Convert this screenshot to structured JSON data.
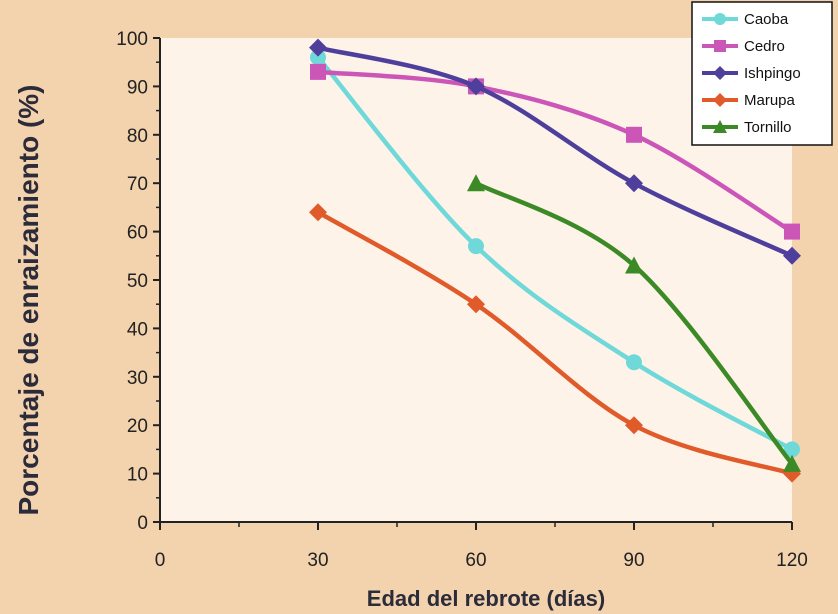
{
  "colors": {
    "background": "#f3d2ae",
    "plot_area": "#fdf3e9",
    "axis": "#222222",
    "legend_bg": "#ffffff"
  },
  "chart_data": {
    "type": "line",
    "title": "",
    "xlabel": "Edad del rebrote (días)",
    "ylabel": "Porcentaje de enraizamiento (%)",
    "xlim": [
      0,
      120
    ],
    "ylim": [
      0,
      100
    ],
    "x_ticks": [
      "0",
      "30",
      "60",
      "90",
      "120"
    ],
    "y_ticks": [
      "0",
      "10",
      "20",
      "30",
      "40",
      "50",
      "60",
      "70",
      "80",
      "90",
      "100"
    ],
    "grid": false,
    "legend_position": "top-right",
    "series": [
      {
        "name": "Caoba",
        "color": "#6fd8d8",
        "marker": "circle",
        "x": [
          30,
          60,
          90,
          120
        ],
        "y": [
          96,
          57,
          33,
          15
        ]
      },
      {
        "name": "Cedro",
        "color": "#cc55b8",
        "marker": "square",
        "x": [
          30,
          60,
          90,
          120
        ],
        "y": [
          93,
          90,
          80,
          60
        ]
      },
      {
        "name": "Ishpingo",
        "color": "#4e3f9c",
        "marker": "diamond",
        "x": [
          30,
          60,
          90,
          120
        ],
        "y": [
          98,
          90,
          70,
          55
        ]
      },
      {
        "name": "Marupa",
        "color": "#e05a2a",
        "marker": "diamond",
        "x": [
          30,
          60,
          90,
          120
        ],
        "y": [
          64,
          45,
          20,
          10
        ]
      },
      {
        "name": "Tornillo",
        "color": "#3c8a26",
        "marker": "triangle",
        "x": [
          60,
          90,
          120
        ],
        "y": [
          70,
          53,
          12
        ]
      }
    ]
  }
}
